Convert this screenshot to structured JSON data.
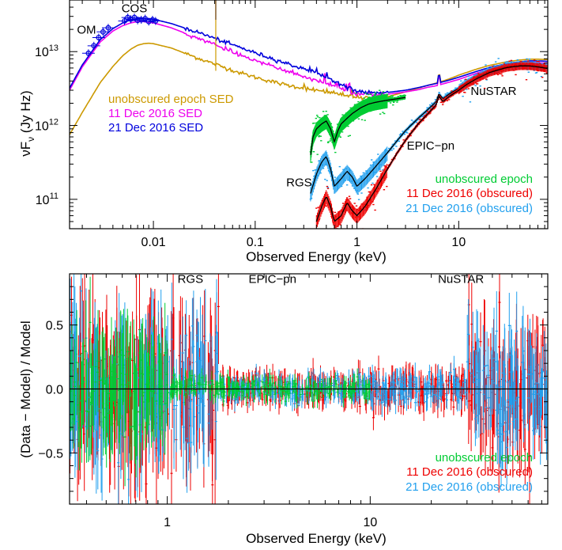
{
  "colors": {
    "unobscured": "#00cc33",
    "dec11": "#ee0000",
    "dec21": "#22a0ee",
    "sed_unobscured": "#cc9900",
    "sed_dec11": "#ee00ee",
    "sed_dec21": "#0000dd",
    "model": "#000000",
    "axis": "#000000"
  },
  "chart_data": [
    {
      "type": "line",
      "xlabel": "Observed Energy (keV)",
      "ylabel": "νFν (Jy Hz)",
      "ylabel_main": "νF",
      "ylabel_sub": "ν",
      "ylabel_unit": " (Jy Hz)",
      "xscale": "log",
      "yscale": "log",
      "xlim": [
        0.0015,
        75
      ],
      "ylim": [
        40000000000.0,
        50000000000000.0
      ],
      "xticks": [
        {
          "value": 0.01,
          "label": "0.01"
        },
        {
          "value": 0.1,
          "label": "0.1"
        },
        {
          "value": 1,
          "label": "1"
        },
        {
          "value": 10,
          "label": "10"
        }
      ],
      "yticks": [
        {
          "value": 100000000000.0,
          "base": "10",
          "exp": "11"
        },
        {
          "value": 1000000000000.0,
          "base": "10",
          "exp": "12"
        },
        {
          "value": 10000000000000.0,
          "base": "10",
          "exp": "13"
        }
      ],
      "annotations": [
        {
          "id": "om",
          "text": "OM",
          "x": 0.0022,
          "y": 17500000000000.0
        },
        {
          "id": "cos",
          "text": "COS",
          "x": 0.0065,
          "y": 34000000000000.0
        },
        {
          "id": "nustar",
          "text": "NuSTAR",
          "x": 22,
          "y": 2600000000000.0
        },
        {
          "id": "epicpn",
          "text": "EPIC−pn",
          "x": 5.3,
          "y": 470000000000.0
        },
        {
          "id": "rgs",
          "text": "RGS",
          "x": 0.27,
          "y": 150000000000.0
        }
      ],
      "legends": [
        {
          "id": "sed",
          "anchor": "middle-left",
          "entries": [
            {
              "label": "unobscured epoch SED",
              "color_key": "sed_unobscured"
            },
            {
              "label": "11 Dec 2016 SED",
              "color_key": "sed_dec11"
            },
            {
              "label": "21 Dec 2016 SED",
              "color_key": "sed_dec21"
            }
          ]
        },
        {
          "id": "data",
          "anchor": "bottom-right",
          "entries": [
            {
              "label": "unobscured epoch",
              "color_key": "unobscured"
            },
            {
              "label": "11 Dec 2016 (obscured)",
              "color_key": "dec11"
            },
            {
              "label": "21 Dec 2016 (obscured)",
              "color_key": "dec21"
            }
          ]
        }
      ],
      "series": [
        {
          "key": "sed_unobscured",
          "role": "sed",
          "x": [
            0.0015,
            0.002,
            0.003,
            0.004,
            0.005,
            0.006,
            0.007,
            0.008,
            0.009,
            0.01,
            0.015,
            0.02,
            0.03,
            0.05,
            0.07,
            0.1,
            0.15,
            0.2,
            0.3,
            0.4,
            0.5,
            0.7,
            1,
            1.5,
            2,
            3,
            4,
            5,
            6,
            7,
            8,
            10,
            15,
            20,
            30,
            40,
            50,
            60,
            75
          ],
          "y": [
            750000000000.0,
            1500000000000.0,
            3800000000000.0,
            6300000000000.0,
            8800000000000.0,
            10800000000000.0,
            12200000000000.0,
            12800000000000.0,
            13000000000000.0,
            12800000000000.0,
            11200000000000.0,
            9600000000000.0,
            7800000000000.0,
            6100000000000.0,
            5200000000000.0,
            4500000000000.0,
            3900000000000.0,
            3550000000000.0,
            3200000000000.0,
            3000000000000.0,
            2850000000000.0,
            2600000000000.0,
            2400000000000.0,
            2320000000000.0,
            2450000000000.0,
            2850000000000.0,
            3200000000000.0,
            3500000000000.0,
            3750000000000.0,
            4000000000000.0,
            4250000000000.0,
            4800000000000.0,
            5800000000000.0,
            6500000000000.0,
            7300000000000.0,
            7700000000000.0,
            7900000000000.0,
            7900000000000.0,
            7800000000000.0
          ]
        },
        {
          "key": "sed_dec11",
          "role": "sed",
          "x": [
            0.0015,
            0.002,
            0.003,
            0.004,
            0.005,
            0.006,
            0.007,
            0.008,
            0.01,
            0.015,
            0.02,
            0.03,
            0.05,
            0.07,
            0.1,
            0.15,
            0.2,
            0.3,
            0.4,
            0.5,
            0.7,
            1,
            1.5,
            2,
            3,
            4,
            5,
            6,
            7,
            8,
            10,
            15,
            20,
            30,
            40,
            50,
            60,
            75
          ],
          "y": [
            3000000000000.0,
            6200000000000.0,
            13500000000000.0,
            19000000000000.0,
            22500000000000.0,
            24500000000000.0,
            25500000000000.0,
            25500000000000.0,
            24500000000000.0,
            21000000000000.0,
            18000000000000.0,
            14500000000000.0,
            11000000000000.0,
            9200000000000.0,
            7600000000000.0,
            6300000000000.0,
            5500000000000.0,
            4600000000000.0,
            4100000000000.0,
            3700000000000.0,
            3100000000000.0,
            2700000000000.0,
            2600000000000.0,
            2650000000000.0,
            2850000000000.0,
            3050000000000.0,
            3300000000000.0,
            3450000000000.0,
            3650000000000.0,
            3850000000000.0,
            4200000000000.0,
            5100000000000.0,
            5800000000000.0,
            6600000000000.0,
            7000000000000.0,
            7100000000000.0,
            7100000000000.0,
            7000000000000.0
          ]
        },
        {
          "key": "sed_dec21",
          "role": "sed",
          "x": [
            0.0015,
            0.002,
            0.003,
            0.004,
            0.005,
            0.006,
            0.007,
            0.008,
            0.01,
            0.015,
            0.02,
            0.03,
            0.05,
            0.07,
            0.1,
            0.15,
            0.2,
            0.3,
            0.4,
            0.5,
            0.7,
            1,
            1.5,
            2,
            3,
            4,
            5,
            6,
            7,
            8,
            10,
            15,
            20,
            30,
            40,
            50,
            60,
            75
          ],
          "y": [
            3200000000000.0,
            6600000000000.0,
            14500000000000.0,
            20500000000000.0,
            24500000000000.0,
            27000000000000.0,
            28000000000000.0,
            28200000000000.0,
            27500000000000.0,
            24000000000000.0,
            21000000000000.0,
            17500000000000.0,
            13500000000000.0,
            11500000000000.0,
            9600000000000.0,
            8000000000000.0,
            7000000000000.0,
            5800000000000.0,
            5100000000000.0,
            4500000000000.0,
            3600000000000.0,
            2900000000000.0,
            2750000000000.0,
            2800000000000.0,
            3000000000000.0,
            3250000000000.0,
            3500000000000.0,
            3700000000000.0,
            3900000000000.0,
            4100000000000.0,
            4500000000000.0,
            5400000000000.0,
            6100000000000.0,
            6900000000000.0,
            7300000000000.0,
            7500000000000.0,
            7500000000000.0,
            7400000000000.0
          ]
        },
        {
          "key": "unobscured",
          "role": "data",
          "x": [
            0.35,
            0.37,
            0.4,
            0.45,
            0.5,
            0.55,
            0.6,
            0.65,
            0.7,
            0.75,
            0.8,
            0.9,
            1.0,
            1.1,
            1.3,
            1.5,
            1.8,
            2,
            2.5,
            3
          ],
          "y": [
            400000000000.0,
            700000000000.0,
            900000000000.0,
            1050000000000.0,
            1150000000000.0,
            900000000000.0,
            600000000000.0,
            850000000000.0,
            1050000000000.0,
            1150000000000.0,
            1250000000000.0,
            1450000000000.0,
            1600000000000.0,
            1750000000000.0,
            1950000000000.0,
            2050000000000.0,
            2150000000000.0,
            2200000000000.0,
            2300000000000.0,
            2400000000000.0
          ]
        },
        {
          "key": "dec21",
          "role": "data",
          "x": [
            0.35,
            0.4,
            0.45,
            0.5,
            0.55,
            0.6,
            0.7,
            0.8,
            0.9,
            1.0,
            1.2,
            1.5,
            2,
            2.5,
            3,
            4,
            5,
            6,
            6.4,
            7,
            8,
            10,
            12,
            15,
            20,
            25,
            30,
            40,
            50,
            60,
            75
          ],
          "y": [
            120000000000.0,
            220000000000.0,
            320000000000.0,
            380000000000.0,
            260000000000.0,
            150000000000.0,
            190000000000.0,
            240000000000.0,
            200000000000.0,
            150000000000.0,
            190000000000.0,
            270000000000.0,
            430000000000.0,
            630000000000.0,
            850000000000.0,
            1250000000000.0,
            1650000000000.0,
            2100000000000.0,
            2700000000000.0,
            2300000000000.0,
            2650000000000.0,
            3200000000000.0,
            3800000000000.0,
            4500000000000.0,
            5400000000000.0,
            5900000000000.0,
            6300000000000.0,
            6600000000000.0,
            6600000000000.0,
            6400000000000.0,
            6100000000000.0
          ]
        },
        {
          "key": "dec11",
          "role": "data",
          "x": [
            0.4,
            0.45,
            0.5,
            0.55,
            0.6,
            0.7,
            0.8,
            0.9,
            1.0,
            1.2,
            1.5,
            2,
            2.5,
            3,
            4,
            5,
            6,
            6.4,
            7,
            8,
            10,
            12,
            15,
            20,
            25,
            30,
            40,
            50,
            60,
            75
          ],
          "y": [
            50000000000.0,
            80000000000.0,
            110000000000.0,
            80000000000.0,
            50000000000.0,
            60000000000.0,
            90000000000.0,
            70000000000.0,
            60000000000.0,
            80000000000.0,
            130000000000.0,
            260000000000.0,
            430000000000.0,
            630000000000.0,
            1050000000000.0,
            1450000000000.0,
            1900000000000.0,
            2500000000000.0,
            2100000000000.0,
            2450000000000.0,
            3000000000000.0,
            3600000000000.0,
            4300000000000.0,
            5200000000000.0,
            5700000000000.0,
            6100000000000.0,
            6400000000000.0,
            6400000000000.0,
            6200000000000.0,
            5900000000000.0
          ]
        }
      ],
      "om_points": {
        "x": [
          0.0023,
          0.0026,
          0.0029,
          0.0032,
          0.0036
        ],
        "y": [
          9500000000000.0,
          12000000000000.0,
          15500000000000.0,
          18500000000000.0,
          21000000000000.0
        ]
      },
      "cos_points": {
        "x": [
          0.0052,
          0.0056,
          0.006,
          0.0065,
          0.007,
          0.0076,
          0.0083,
          0.009,
          0.0098,
          0.0105
        ],
        "y": [
          26000000000000.0,
          29000000000000.0,
          27500000000000.0,
          29000000000000.0,
          26500000000000.0,
          27000000000000.0,
          28000000000000.0,
          25500000000000.0,
          27000000000000.0,
          26000000000000.0
        ]
      },
      "narrow_line_keV": 0.041
    },
    {
      "type": "scatter",
      "xlabel": "Observed Energy (keV)",
      "ylabel": "(Data − Model) / Model",
      "xscale": "log",
      "yscale": "linear",
      "xlim": [
        0.33,
        75
      ],
      "ylim": [
        -0.9,
        0.9
      ],
      "xticks": [
        {
          "value": 1,
          "label": "1"
        },
        {
          "value": 10,
          "label": "10"
        }
      ],
      "yticks": [
        {
          "value": -0.5,
          "label": "−0.5"
        },
        {
          "value": 0.0,
          "label": "0.0"
        },
        {
          "value": 0.5,
          "label": "0.5"
        }
      ],
      "zero_line": 0,
      "annotations": [
        {
          "id": "rgs",
          "text": "RGS",
          "x": 1.3,
          "y": 0.83
        },
        {
          "id": "epicpn",
          "text": "EPIC−pn",
          "x": 3.3,
          "y": 0.83
        },
        {
          "id": "nustar",
          "text": "NuSTAR",
          "x": 28,
          "y": 0.83
        }
      ],
      "legends": [
        {
          "id": "residual-legend",
          "anchor": "bottom-right",
          "entries": [
            {
              "label": "unobscured epoch",
              "color_key": "unobscured"
            },
            {
              "label": "11 Dec 2016 (obscured)",
              "color_key": "dec11"
            },
            {
              "label": "21 Dec 2016 (obscured)",
              "color_key": "dec21"
            }
          ]
        }
      ],
      "series": [
        {
          "key": "dec11",
          "scatter_by_band": [
            [
              0.33,
              1.8,
              0.6
            ],
            [
              1.8,
              10,
              0.12
            ],
            [
              10,
              30,
              0.15
            ],
            [
              30,
              75,
              0.45
            ]
          ]
        },
        {
          "key": "dec21",
          "scatter_by_band": [
            [
              0.33,
              1.8,
              0.5
            ],
            [
              1.8,
              10,
              0.1
            ],
            [
              10,
              30,
              0.12
            ],
            [
              30,
              75,
              0.4
            ]
          ]
        },
        {
          "key": "unobscured",
          "scatter_by_band": [
            [
              0.33,
              1.0,
              0.45
            ],
            [
              1.0,
              10,
              0.08
            ]
          ]
        }
      ]
    }
  ]
}
